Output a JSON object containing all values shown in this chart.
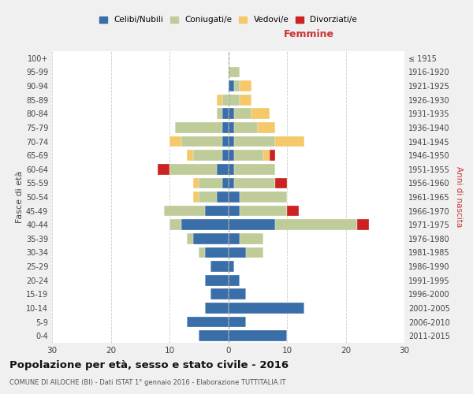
{
  "age_groups": [
    "0-4",
    "5-9",
    "10-14",
    "15-19",
    "20-24",
    "25-29",
    "30-34",
    "35-39",
    "40-44",
    "45-49",
    "50-54",
    "55-59",
    "60-64",
    "65-69",
    "70-74",
    "75-79",
    "80-84",
    "85-89",
    "90-94",
    "95-99",
    "100+"
  ],
  "birth_years": [
    "2011-2015",
    "2006-2010",
    "2001-2005",
    "1996-2000",
    "1991-1995",
    "1986-1990",
    "1981-1985",
    "1976-1980",
    "1971-1975",
    "1966-1970",
    "1961-1965",
    "1956-1960",
    "1951-1955",
    "1946-1950",
    "1941-1945",
    "1936-1940",
    "1931-1935",
    "1926-1930",
    "1921-1925",
    "1916-1920",
    "≤ 1915"
  ],
  "colors": {
    "celibi": "#3a6ea8",
    "coniugati": "#bfcc99",
    "vedovi": "#f5c96a",
    "divorziati": "#cc2222"
  },
  "males": {
    "celibi": [
      5,
      7,
      4,
      3,
      4,
      3,
      4,
      6,
      8,
      4,
      2,
      1,
      2,
      1,
      1,
      1,
      1,
      0,
      0,
      0,
      0
    ],
    "coniugati": [
      0,
      0,
      0,
      0,
      0,
      0,
      1,
      1,
      2,
      7,
      3,
      4,
      8,
      5,
      7,
      8,
      1,
      1,
      0,
      0,
      0
    ],
    "vedovi": [
      0,
      0,
      0,
      0,
      0,
      0,
      0,
      0,
      0,
      0,
      1,
      1,
      0,
      1,
      2,
      0,
      0,
      1,
      0,
      0,
      0
    ],
    "divorziati": [
      0,
      0,
      0,
      0,
      0,
      0,
      0,
      0,
      0,
      0,
      0,
      0,
      2,
      0,
      0,
      0,
      0,
      0,
      0,
      0,
      0
    ]
  },
  "females": {
    "nubili": [
      10,
      3,
      13,
      3,
      2,
      1,
      3,
      2,
      8,
      2,
      2,
      1,
      1,
      1,
      1,
      1,
      1,
      0,
      1,
      0,
      0
    ],
    "coniugate": [
      0,
      0,
      0,
      0,
      0,
      0,
      3,
      4,
      14,
      8,
      8,
      7,
      7,
      5,
      7,
      4,
      3,
      2,
      1,
      2,
      0
    ],
    "vedove": [
      0,
      0,
      0,
      0,
      0,
      0,
      0,
      0,
      0,
      0,
      0,
      0,
      0,
      1,
      5,
      3,
      3,
      2,
      2,
      0,
      0
    ],
    "divorziate": [
      0,
      0,
      0,
      0,
      0,
      0,
      0,
      0,
      2,
      2,
      0,
      2,
      0,
      1,
      0,
      0,
      0,
      0,
      0,
      0,
      0
    ]
  },
  "xlim": 30,
  "title": "Popolazione per età, sesso e stato civile - 2016",
  "subtitle": "COMUNE DI AILOCHE (BI) - Dati ISTAT 1° gennaio 2016 - Elaborazione TUTTITALIA.IT",
  "ylabel_left": "Fasce di età",
  "ylabel_right": "Anni di nascita",
  "xlabel_right": "Femmine",
  "bg_color": "#f0f0f0",
  "plot_bg": "#ffffff",
  "grid_color": "#cccccc"
}
